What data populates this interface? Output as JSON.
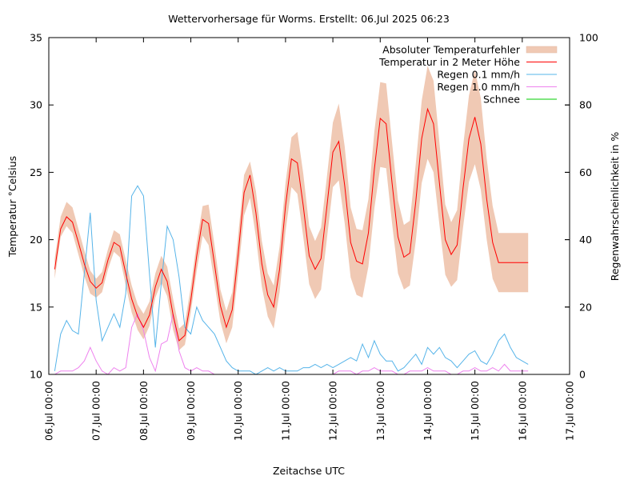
{
  "chart_data": {
    "type": "line",
    "title": "Wettervorhersage für Worms. Erstellt: 06.Jul 2025 06:23",
    "xlabel": "Zeitachse UTC",
    "ylabel": "Temperatur °Celsius",
    "y2label": "Regenwahrscheinlichkeit in %",
    "ylim": [
      10,
      35
    ],
    "y2lim": [
      0,
      100
    ],
    "xlim_days": [
      0,
      11
    ],
    "grid": false,
    "legend_position": "top-right",
    "yticks": [
      "10",
      "15",
      "20",
      "25",
      "30",
      "35"
    ],
    "y2ticks": [
      "0",
      "20",
      "40",
      "60",
      "80",
      "100"
    ],
    "xticks": [
      "06.Jul 00:00",
      "07.Jul 00:00",
      "08.Jul 00:00",
      "09.Jul 00:00",
      "10.Jul 00:00",
      "11.Jul 00:00",
      "12.Jul 00:00",
      "13.Jul 00:00",
      "14.Jul 00:00",
      "15.Jul 00:00",
      "16.Jul 00:00",
      "17.Jul 00:00"
    ],
    "legend": [
      {
        "key": "error",
        "label": "Absoluter Temperaturfehler",
        "color": "#f0c9b4",
        "kind": "band"
      },
      {
        "key": "temp",
        "label": "Temperatur in 2 Meter Höhe",
        "color": "#ff0000",
        "kind": "line"
      },
      {
        "key": "rain01",
        "label": "Regen 0.1 mm/h",
        "color": "#56b4e9",
        "kind": "line"
      },
      {
        "key": "rain10",
        "label": "Regen 1.0 mm/h",
        "color": "#ee82ee",
        "kind": "line"
      },
      {
        "key": "snow",
        "label": "Schnee",
        "color": "#00cc00",
        "kind": "line"
      }
    ],
    "x_hours": [
      3,
      6,
      9,
      12,
      15,
      18,
      21,
      24,
      27,
      30,
      33,
      36,
      39,
      42,
      45,
      48,
      51,
      54,
      57,
      60,
      63,
      66,
      69,
      72,
      75,
      78,
      81,
      84,
      87,
      90,
      93,
      96,
      99,
      102,
      105,
      108,
      111,
      114,
      117,
      120,
      123,
      126,
      129,
      132,
      135,
      138,
      141,
      144,
      147,
      150,
      153,
      156,
      159,
      162,
      165,
      168,
      171,
      174,
      177,
      180,
      183,
      186,
      189,
      192,
      195,
      198,
      201,
      204,
      207,
      210,
      213,
      216,
      219,
      222,
      225,
      228,
      231,
      234,
      237,
      240,
      243
    ],
    "series": [
      {
        "name": "Temperatur in 2 Meter Höhe",
        "unit": "°C",
        "values": [
          17.8,
          20.8,
          21.7,
          21.3,
          19.8,
          18.2,
          16.9,
          16.4,
          16.8,
          18.5,
          19.8,
          19.5,
          17.5,
          15.6,
          14.3,
          13.5,
          14.4,
          16.5,
          17.8,
          16.9,
          14.4,
          12.5,
          12.9,
          15.5,
          18.8,
          21.5,
          21.2,
          18.2,
          15.1,
          13.5,
          14.8,
          18.9,
          23.5,
          24.8,
          22.0,
          18.2,
          15.9,
          15.0,
          17.8,
          22.5,
          26.0,
          25.7,
          22.5,
          18.8,
          17.8,
          18.6,
          22.5,
          26.5,
          27.3,
          24.0,
          19.8,
          18.4,
          18.2,
          20.5,
          25.2,
          29.0,
          28.6,
          24.2,
          20.2,
          18.7,
          19.0,
          22.8,
          27.5,
          29.7,
          28.6,
          24.2,
          20.0,
          18.9,
          19.6,
          23.8,
          27.5,
          29.1,
          27.1,
          23.0,
          19.8,
          18.3,
          18.3,
          18.3,
          18.3,
          18.3,
          18.3
        ]
      },
      {
        "name": "Absoluter Temperaturfehler (untere Grenze)",
        "unit": "°C",
        "values": [
          17.1,
          20.2,
          21.0,
          20.5,
          18.9,
          17.3,
          16.0,
          15.7,
          16.1,
          17.8,
          19.1,
          18.7,
          16.6,
          14.6,
          13.3,
          12.6,
          13.6,
          15.7,
          16.8,
          15.8,
          13.3,
          11.8,
          12.2,
          14.6,
          17.7,
          20.3,
          19.6,
          16.8,
          13.9,
          12.3,
          13.5,
          17.5,
          21.8,
          23.1,
          20.2,
          16.5,
          14.3,
          13.4,
          16.1,
          20.6,
          23.9,
          23.4,
          20.2,
          16.7,
          15.6,
          16.3,
          20.1,
          23.9,
          24.4,
          21.2,
          17.2,
          15.9,
          15.7,
          18.0,
          22.3,
          25.4,
          25.3,
          21.2,
          17.5,
          16.3,
          16.6,
          19.9,
          24.2,
          26.0,
          25.0,
          21.1,
          17.4,
          16.5,
          17.0,
          20.9,
          24.3,
          25.6,
          23.7,
          20.0,
          17.1,
          16.1,
          16.1,
          16.1,
          16.1,
          16.1,
          16.1
        ]
      },
      {
        "name": "Absoluter Temperaturfehler (obere Grenze)",
        "unit": "°C",
        "values": [
          18.6,
          21.7,
          22.8,
          22.4,
          20.8,
          19.2,
          17.7,
          17.1,
          17.6,
          19.3,
          20.7,
          20.4,
          18.5,
          16.6,
          15.2,
          14.5,
          15.4,
          17.5,
          18.8,
          18.0,
          15.6,
          13.4,
          13.8,
          16.5,
          19.8,
          22.5,
          22.6,
          19.6,
          16.3,
          14.7,
          16.1,
          20.3,
          24.8,
          25.8,
          23.6,
          19.9,
          17.5,
          16.6,
          19.5,
          24.2,
          27.6,
          28.0,
          24.9,
          21.0,
          19.9,
          20.9,
          24.7,
          28.7,
          30.1,
          26.9,
          22.4,
          20.8,
          20.7,
          23.0,
          28.0,
          31.7,
          31.6,
          27.2,
          22.9,
          21.1,
          21.4,
          25.6,
          30.3,
          32.9,
          31.8,
          27.2,
          22.6,
          21.3,
          22.2,
          26.9,
          30.7,
          32.6,
          30.5,
          26.0,
          22.5,
          20.5,
          20.5,
          20.5,
          20.5,
          20.5,
          20.5
        ]
      },
      {
        "name": "Regen 0.1 mm/h",
        "unit": "%",
        "values": [
          1,
          12,
          16,
          13,
          12,
          30,
          48,
          22,
          10,
          14,
          18,
          14,
          24,
          53,
          56,
          53,
          30,
          8,
          27,
          44,
          40,
          29,
          14,
          12,
          20,
          16,
          14,
          12,
          8,
          4,
          2,
          1,
          1,
          1,
          0,
          1,
          2,
          1,
          2,
          1,
          1,
          1,
          2,
          2,
          3,
          2,
          3,
          2,
          3,
          4,
          5,
          4,
          9,
          5,
          10,
          6,
          4,
          4,
          1,
          2,
          4,
          6,
          3,
          8,
          6,
          8,
          5,
          4,
          2,
          4,
          6,
          7,
          4,
          3,
          6,
          10,
          12,
          8,
          5,
          4,
          3
        ]
      },
      {
        "name": "Regen 1.0 mm/h",
        "unit": "%",
        "values": [
          0,
          1,
          1,
          1,
          2,
          4,
          8,
          4,
          1,
          0,
          2,
          1,
          2,
          14,
          18,
          13,
          5,
          1,
          9,
          10,
          18,
          7,
          2,
          1,
          2,
          1,
          1,
          0,
          0,
          0,
          0,
          0,
          0,
          0,
          0,
          0,
          0,
          0,
          0,
          0,
          0,
          0,
          0,
          0,
          0,
          0,
          0,
          0,
          1,
          1,
          1,
          0,
          1,
          1,
          2,
          1,
          1,
          1,
          0,
          0,
          1,
          1,
          1,
          2,
          1,
          1,
          1,
          0,
          0,
          1,
          1,
          2,
          1,
          1,
          2,
          1,
          3,
          1,
          1,
          1,
          1
        ]
      },
      {
        "name": "Schnee",
        "unit": "%",
        "values": []
      }
    ]
  }
}
